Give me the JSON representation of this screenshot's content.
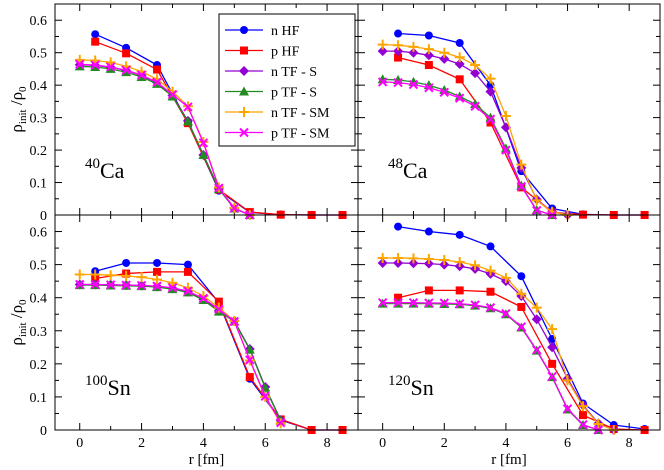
{
  "chart_data": {
    "type": "line",
    "xlabel": "r [fm]",
    "ylabel": "ρ_init / ρ_0",
    "xlim": [
      -0.8,
      9
    ],
    "ylim": [
      0,
      0.65
    ],
    "xticks": [
      0,
      2,
      4,
      6,
      8
    ],
    "yticks": [
      0,
      0.1,
      0.2,
      0.3,
      0.4,
      0.5,
      0.6
    ],
    "legend": {
      "placement": "top-center",
      "entries": [
        {
          "label": "n HF",
          "color": "#0000ff",
          "marker": "circle"
        },
        {
          "label": "p HF",
          "color": "#ff0000",
          "marker": "square"
        },
        {
          "label": "n TF - S",
          "color": "#9400d3",
          "marker": "diamond"
        },
        {
          "label": "p TF - S",
          "color": "#228b22",
          "marker": "triangle"
        },
        {
          "label": "n TF - SM",
          "color": "#ffa500",
          "marker": "plus"
        },
        {
          "label": "p TF - SM",
          "color": "#ff00ff",
          "marker": "cross"
        }
      ]
    },
    "panels": [
      {
        "id": "ca40",
        "annotation": {
          "mass": "40",
          "element": "Ca"
        },
        "series": [
          {
            "name": "n HF",
            "x": [
              0.5,
              1.5,
              2.5,
              3.5,
              4.5,
              5.5,
              6.5,
              7.5,
              8.5
            ],
            "y": [
              0.557,
              0.515,
              0.462,
              0.285,
              0.075,
              0.008,
              0.001,
              0.0,
              0.0
            ]
          },
          {
            "name": "p HF",
            "x": [
              0.5,
              1.5,
              2.5,
              3.5,
              4.5,
              5.5,
              6.5,
              7.5,
              8.5
            ],
            "y": [
              0.534,
              0.498,
              0.448,
              0.283,
              0.078,
              0.009,
              0.001,
              0.0,
              0.0
            ]
          },
          {
            "name": "n TF - S",
            "x": [
              0,
              0.5,
              1,
              1.5,
              2,
              2.5,
              3,
              3.5,
              4,
              4.5,
              5,
              5.5
            ],
            "y": [
              0.463,
              0.461,
              0.455,
              0.445,
              0.43,
              0.408,
              0.368,
              0.29,
              0.185,
              0.08,
              0.02,
              0.0
            ]
          },
          {
            "name": "p TF - S",
            "x": [
              0,
              0.5,
              1,
              1.5,
              2,
              2.5,
              3,
              3.5,
              4,
              4.5,
              5,
              5.5
            ],
            "y": [
              0.458,
              0.456,
              0.45,
              0.44,
              0.425,
              0.404,
              0.365,
              0.288,
              0.185,
              0.08,
              0.02,
              0.0
            ]
          },
          {
            "name": "n TF - SM",
            "x": [
              0,
              0.5,
              1,
              1.5,
              2,
              2.5,
              3,
              3.5,
              4,
              4.5,
              5,
              5.5
            ],
            "y": [
              0.478,
              0.476,
              0.47,
              0.458,
              0.442,
              0.418,
              0.38,
              0.335,
              0.225,
              0.085,
              0.022,
              0.0
            ]
          },
          {
            "name": "p TF - SM",
            "x": [
              0,
              0.5,
              1,
              1.5,
              2,
              2.5,
              3,
              3.5,
              4,
              4.5,
              5,
              5.5
            ],
            "y": [
              0.464,
              0.462,
              0.456,
              0.446,
              0.431,
              0.409,
              0.371,
              0.333,
              0.222,
              0.083,
              0.021,
              0.0
            ]
          }
        ]
      },
      {
        "id": "ca48",
        "annotation": {
          "mass": "48",
          "element": "Ca"
        },
        "series": [
          {
            "name": "n HF",
            "x": [
              0.5,
              1.5,
              2.5,
              3.5,
              4.5,
              5.5,
              6.5,
              7.5,
              8.5
            ],
            "y": [
              0.559,
              0.553,
              0.53,
              0.4,
              0.135,
              0.02,
              0.002,
              0.0,
              0.0
            ]
          },
          {
            "name": "p HF",
            "x": [
              0.5,
              1.5,
              2.5,
              3.5,
              4.5,
              5.5,
              6.5,
              7.5,
              8.5
            ],
            "y": [
              0.485,
              0.462,
              0.418,
              0.285,
              0.085,
              0.008,
              0.001,
              0.0,
              0.0
            ]
          },
          {
            "name": "n TF - S",
            "x": [
              0,
              0.5,
              1,
              1.5,
              2,
              2.5,
              3,
              3.5,
              4,
              4.5,
              5,
              5.5,
              6
            ],
            "y": [
              0.505,
              0.505,
              0.5,
              0.492,
              0.481,
              0.465,
              0.437,
              0.38,
              0.27,
              0.145,
              0.048,
              0.01,
              0.0
            ]
          },
          {
            "name": "p TF - S",
            "x": [
              0,
              0.5,
              1,
              1.5,
              2,
              2.5,
              3,
              3.5,
              4,
              4.5,
              5,
              5.5
            ],
            "y": [
              0.418,
              0.416,
              0.41,
              0.4,
              0.385,
              0.365,
              0.342,
              0.3,
              0.205,
              0.09,
              0.015,
              0.0
            ]
          },
          {
            "name": "n TF - SM",
            "x": [
              0,
              0.5,
              1,
              1.5,
              2,
              2.5,
              3,
              3.5,
              4,
              4.5,
              5,
              5.5,
              6
            ],
            "y": [
              0.525,
              0.523,
              0.518,
              0.511,
              0.5,
              0.486,
              0.462,
              0.42,
              0.305,
              0.155,
              0.045,
              0.01,
              0.0
            ]
          },
          {
            "name": "p TF - SM",
            "x": [
              0,
              0.5,
              1,
              1.5,
              2,
              2.5,
              3,
              3.5,
              4,
              4.5,
              5,
              5.5
            ],
            "y": [
              0.41,
              0.408,
              0.402,
              0.392,
              0.378,
              0.36,
              0.335,
              0.295,
              0.2,
              0.088,
              0.014,
              0.0
            ]
          }
        ]
      },
      {
        "id": "sn100",
        "annotation": {
          "mass": "100",
          "element": "Sn"
        },
        "series": [
          {
            "name": "n HF",
            "x": [
              0.5,
              1.5,
              2.5,
              3.5,
              4.5,
              5.5,
              6.5,
              7.5,
              8.5
            ],
            "y": [
              0.48,
              0.505,
              0.505,
              0.5,
              0.385,
              0.155,
              0.03,
              0.0,
              0.0
            ]
          },
          {
            "name": "p HF",
            "x": [
              0.5,
              1.5,
              2.5,
              3.5,
              4.5,
              5.5,
              6.5,
              7.5,
              8.5
            ],
            "y": [
              0.458,
              0.473,
              0.478,
              0.478,
              0.388,
              0.16,
              0.032,
              0.0,
              0.0
            ]
          },
          {
            "name": "n TF - S",
            "x": [
              0,
              0.5,
              1,
              1.5,
              2,
              2.5,
              3,
              3.5,
              4,
              4.5,
              5,
              5.5,
              6,
              6.5
            ],
            "y": [
              0.44,
              0.44,
              0.439,
              0.438,
              0.437,
              0.434,
              0.428,
              0.418,
              0.395,
              0.36,
              0.33,
              0.245,
              0.13,
              0.03
            ]
          },
          {
            "name": "p TF - S",
            "x": [
              0,
              0.5,
              1,
              1.5,
              2,
              2.5,
              3,
              3.5,
              4,
              4.5,
              5,
              5.5,
              6,
              6.5
            ],
            "y": [
              0.438,
              0.438,
              0.437,
              0.436,
              0.435,
              0.432,
              0.426,
              0.416,
              0.393,
              0.358,
              0.328,
              0.243,
              0.128,
              0.028
            ]
          },
          {
            "name": "n TF - SM",
            "x": [
              0,
              0.5,
              1,
              1.5,
              2,
              2.5,
              3,
              3.5,
              4,
              4.5,
              5,
              5.5,
              6,
              6.5
            ],
            "y": [
              0.47,
              0.47,
              0.468,
              0.466,
              0.462,
              0.455,
              0.445,
              0.43,
              0.405,
              0.37,
              0.33,
              0.21,
              0.1,
              0.02
            ]
          },
          {
            "name": "p TF - SM",
            "x": [
              0,
              0.5,
              1,
              1.5,
              2,
              2.5,
              3,
              3.5,
              4,
              4.5,
              5,
              5.5,
              6,
              6.5
            ],
            "y": [
              0.44,
              0.44,
              0.439,
              0.438,
              0.437,
              0.435,
              0.43,
              0.42,
              0.398,
              0.365,
              0.328,
              0.212,
              0.102,
              0.022
            ]
          }
        ]
      },
      {
        "id": "sn120",
        "annotation": {
          "mass": "120",
          "element": "Sn"
        },
        "series": [
          {
            "name": "n HF",
            "x": [
              0.5,
              1.5,
              2.5,
              3.5,
              4.5,
              5.5,
              6.5,
              7.5,
              8.5
            ],
            "y": [
              0.615,
              0.6,
              0.59,
              0.555,
              0.465,
              0.275,
              0.08,
              0.015,
              0.003
            ]
          },
          {
            "name": "p HF",
            "x": [
              0.5,
              1.5,
              2.5,
              3.5,
              4.5,
              5.5,
              6.5,
              7.5,
              8.5
            ],
            "y": [
              0.4,
              0.422,
              0.422,
              0.418,
              0.372,
              0.2,
              0.045,
              0.003,
              0.0
            ]
          },
          {
            "name": "n TF - S",
            "x": [
              0,
              0.5,
              1,
              1.5,
              2,
              2.5,
              3,
              3.5,
              4,
              4.5,
              5,
              5.5,
              6,
              6.5,
              7,
              7.5
            ],
            "y": [
              0.505,
              0.505,
              0.504,
              0.503,
              0.5,
              0.495,
              0.487,
              0.472,
              0.45,
              0.405,
              0.335,
              0.25,
              0.155,
              0.075,
              0.02,
              0.0
            ]
          },
          {
            "name": "p TF - S",
            "x": [
              0,
              0.5,
              1,
              1.5,
              2,
              2.5,
              3,
              3.5,
              4,
              4.5,
              5,
              5.5,
              6,
              6.5,
              7
            ],
            "y": [
              0.382,
              0.382,
              0.382,
              0.382,
              0.381,
              0.38,
              0.376,
              0.368,
              0.35,
              0.31,
              0.24,
              0.16,
              0.062,
              0.015,
              0.0
            ]
          },
          {
            "name": "n TF - SM",
            "x": [
              0,
              0.5,
              1,
              1.5,
              2,
              2.5,
              3,
              3.5,
              4,
              4.5,
              5,
              5.5,
              6,
              6.5,
              7,
              7.5
            ],
            "y": [
              0.52,
              0.52,
              0.519,
              0.517,
              0.514,
              0.508,
              0.498,
              0.482,
              0.46,
              0.412,
              0.37,
              0.305,
              0.15,
              0.072,
              0.018,
              0.0
            ]
          },
          {
            "name": "p TF - SM",
            "x": [
              0,
              0.5,
              1,
              1.5,
              2,
              2.5,
              3,
              3.5,
              4,
              4.5,
              5,
              5.5,
              6,
              6.5,
              7
            ],
            "y": [
              0.385,
              0.385,
              0.385,
              0.384,
              0.384,
              0.382,
              0.378,
              0.37,
              0.352,
              0.312,
              0.242,
              0.162,
              0.064,
              0.016,
              0.0
            ]
          }
        ]
      }
    ]
  }
}
